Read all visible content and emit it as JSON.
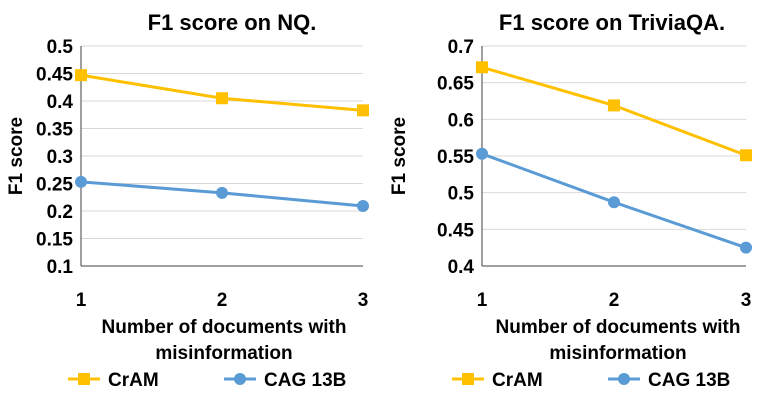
{
  "chart_data": [
    {
      "type": "line",
      "title": "F1 score on NQ.",
      "xlabel_lines": [
        "Number of documents with",
        "misinformation"
      ],
      "ylabel": "F1 score",
      "categories": [
        "1",
        "2",
        "3"
      ],
      "ylim": [
        0.1,
        0.5
      ],
      "yticks": [
        "0.1",
        "0.15",
        "0.2",
        "0.25",
        "0.3",
        "0.35",
        "0.4",
        "0.45",
        "0.5"
      ],
      "grid": true,
      "series": [
        {
          "name": "CrAM",
          "color": "#FFC000",
          "marker": "square",
          "values": [
            0.447,
            0.405,
            0.383
          ]
        },
        {
          "name": "CAG 13B",
          "color": "#5B9BD5",
          "marker": "circle",
          "values": [
            0.253,
            0.233,
            0.209
          ]
        }
      ],
      "legend": {
        "position": "bottom"
      }
    },
    {
      "type": "line",
      "title": "F1 score on TriviaQA.",
      "xlabel_lines": [
        "Number of documents with",
        "misinformation"
      ],
      "ylabel": "F1 score",
      "categories": [
        "1",
        "2",
        "3"
      ],
      "ylim": [
        0.4,
        0.7
      ],
      "yticks": [
        "0.4",
        "0.45",
        "0.5",
        "0.55",
        "0.6",
        "0.65",
        "0.7"
      ],
      "grid": true,
      "series": [
        {
          "name": "CrAM",
          "color": "#FFC000",
          "marker": "square",
          "values": [
            0.671,
            0.619,
            0.551
          ]
        },
        {
          "name": "CAG 13B",
          "color": "#5B9BD5",
          "marker": "circle",
          "values": [
            0.553,
            0.487,
            0.425
          ]
        }
      ],
      "legend": {
        "position": "bottom"
      }
    }
  ]
}
